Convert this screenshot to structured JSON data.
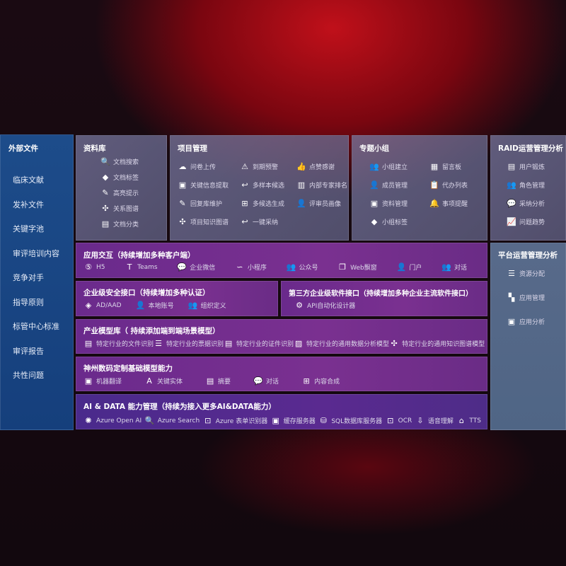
{
  "left": {
    "title": "外部文件",
    "items": [
      "临床文献",
      "发补文件",
      "关键字池",
      "审评培训内容",
      "竞争对手",
      "指导原则",
      "标管中心标准",
      "审评报告",
      "共性问题"
    ]
  },
  "library": {
    "title": "资料库",
    "items": [
      {
        "label": "文档搜索",
        "icon": "doc-search-icon",
        "g": "🔍"
      },
      {
        "label": "文档标签",
        "icon": "tag-icon",
        "g": "◆"
      },
      {
        "label": "高亮提示",
        "icon": "pen-icon",
        "g": "✎"
      },
      {
        "label": "关系图谱",
        "icon": "graph-icon",
        "g": "✣"
      },
      {
        "label": "文档分类",
        "icon": "docs-icon",
        "g": "▤"
      }
    ]
  },
  "project": {
    "title": "项目管理",
    "items": [
      {
        "label": "问卷上传",
        "icon": "cloud-upload-icon",
        "g": "☁"
      },
      {
        "label": "到期预警",
        "icon": "alarm-icon",
        "g": "⚠"
      },
      {
        "label": "点赞感谢",
        "icon": "thumbs-up-icon",
        "g": "👍"
      },
      {
        "label": "关键信息提取",
        "icon": "browser-icon",
        "g": "▣"
      },
      {
        "label": "多样本候选",
        "icon": "reply-icon",
        "g": "↩"
      },
      {
        "label": "内部专家排名",
        "icon": "ranking-icon",
        "g": "▥"
      },
      {
        "label": "回复库维护",
        "icon": "edit-icon",
        "g": "✎"
      },
      {
        "label": "多候选生成",
        "icon": "puzzle-icon",
        "g": "⊞"
      },
      {
        "label": "评审员画像",
        "icon": "user-icon",
        "g": "👤"
      },
      {
        "label": "项目知识图谱",
        "icon": "network-icon",
        "g": "✣"
      },
      {
        "label": "一键采纳",
        "icon": "reply-icon",
        "g": "↩"
      }
    ]
  },
  "group": {
    "title": "专题小组",
    "items": [
      {
        "label": "小组建立",
        "icon": "users-icon",
        "g": "👥"
      },
      {
        "label": "留言板",
        "icon": "bbs-icon",
        "g": "▦"
      },
      {
        "label": "成员管理",
        "icon": "user-add-icon",
        "g": "👤"
      },
      {
        "label": "代办列表",
        "icon": "clipboard-icon",
        "g": "📋"
      },
      {
        "label": "资料管理",
        "icon": "folder-icon",
        "g": "▣"
      },
      {
        "label": "事项提醒",
        "icon": "bell-icon",
        "g": "🔔"
      },
      {
        "label": "小组标签",
        "icon": "tag-icon",
        "g": "◆"
      }
    ]
  },
  "raid": {
    "title": "RAID运营管理分析",
    "items": [
      {
        "label": "用户锻炼",
        "icon": "id-card-icon",
        "g": "▤"
      },
      {
        "label": "角色管理",
        "icon": "users-icon",
        "g": "👥"
      },
      {
        "label": "采纳分析",
        "icon": "qa-icon",
        "g": "💬"
      },
      {
        "label": "问题趋势",
        "icon": "trend-icon",
        "g": "📈"
      }
    ]
  },
  "platform": {
    "title": "平台运营管理分析",
    "items": [
      {
        "label": "资源分配",
        "icon": "checklist-icon",
        "g": "☰"
      },
      {
        "label": "应用管理",
        "icon": "apps-icon",
        "g": "▚"
      },
      {
        "label": "应用分析",
        "icon": "analysis-icon",
        "g": "▣"
      }
    ]
  },
  "interact": {
    "title": "应用交互（持续增加多种客户端）",
    "items": [
      {
        "label": "H5",
        "icon": "html5-icon",
        "g": "⑤"
      },
      {
        "label": "Teams",
        "icon": "teams-icon",
        "g": "T"
      },
      {
        "label": "企业微信",
        "icon": "wechat-icon",
        "g": "💬"
      },
      {
        "label": "小程序",
        "icon": "miniprogram-icon",
        "g": "∽"
      },
      {
        "label": "公众号",
        "icon": "official-account-icon",
        "g": "👥"
      },
      {
        "label": "Web飘窗",
        "icon": "window-icon",
        "g": "❐"
      },
      {
        "label": "门户",
        "icon": "portal-icon",
        "g": "👤"
      },
      {
        "label": "对话",
        "icon": "chat-users-icon",
        "g": "👥"
      }
    ]
  },
  "security": {
    "title": "企业级安全接口（持续增加多种认证）",
    "items": [
      {
        "label": "AD/AAD",
        "icon": "ad-icon",
        "g": "◈"
      },
      {
        "label": "本地账号",
        "icon": "account-icon",
        "g": "👤"
      },
      {
        "label": "组织定义",
        "icon": "org-icon",
        "g": "👥"
      }
    ]
  },
  "thirdparty": {
    "title": "第三方企业级软件接口（持续增加多种企业主流软件接口）",
    "items": [
      {
        "label": "API自动化设计器",
        "icon": "gear-icon",
        "g": "⚙"
      }
    ]
  },
  "industry": {
    "title": "产业模型库（ 持续添加端到端场景模型）",
    "items": [
      {
        "label": "特定行业的文件识别",
        "icon": "file-icon",
        "g": "▤"
      },
      {
        "label": "特定行业的票据识别",
        "icon": "receipt-icon",
        "g": "☰"
      },
      {
        "label": "特定行业的证件识别",
        "icon": "id-card-icon",
        "g": "▤"
      },
      {
        "label": "特定行业的通用数据分析模型",
        "icon": "chart-icon",
        "g": "▨"
      },
      {
        "label": "特定行业的通用知识图谱模型",
        "icon": "network-icon",
        "g": "✣"
      }
    ]
  },
  "base": {
    "title": "神州数码定制基础模型能力",
    "items": [
      {
        "label": "机器翻译",
        "icon": "translate-icon",
        "g": "▣"
      },
      {
        "label": "关键实体",
        "icon": "entity-icon",
        "g": "A"
      },
      {
        "label": "摘要",
        "icon": "summary-icon",
        "g": "▤"
      },
      {
        "label": "对话",
        "icon": "chat-icon",
        "g": "💬"
      },
      {
        "label": "内容合成",
        "icon": "puzzle-icon",
        "g": "⊞"
      }
    ]
  },
  "aidata": {
    "title": "AI & DATA 能力管理（持续为接入更多AI&DATA能力）",
    "items": [
      {
        "label": "Azure Open AI",
        "icon": "openai-icon",
        "g": "✺"
      },
      {
        "label": "Azure Search",
        "icon": "search-doc-icon",
        "g": "🔍"
      },
      {
        "label": "Azure 表单识别器",
        "icon": "form-scan-icon",
        "g": "⊡"
      },
      {
        "label": "缓存服务器",
        "icon": "cache-icon",
        "g": "▣"
      },
      {
        "label": "SQL数据库服务器",
        "icon": "database-icon",
        "g": "⛁"
      },
      {
        "label": "OCR",
        "icon": "ocr-icon",
        "g": "⊡"
      },
      {
        "label": "语音理解",
        "icon": "voice-icon",
        "g": "⇩"
      },
      {
        "label": "TTS",
        "icon": "tts-icon",
        "g": "⌂"
      }
    ]
  }
}
